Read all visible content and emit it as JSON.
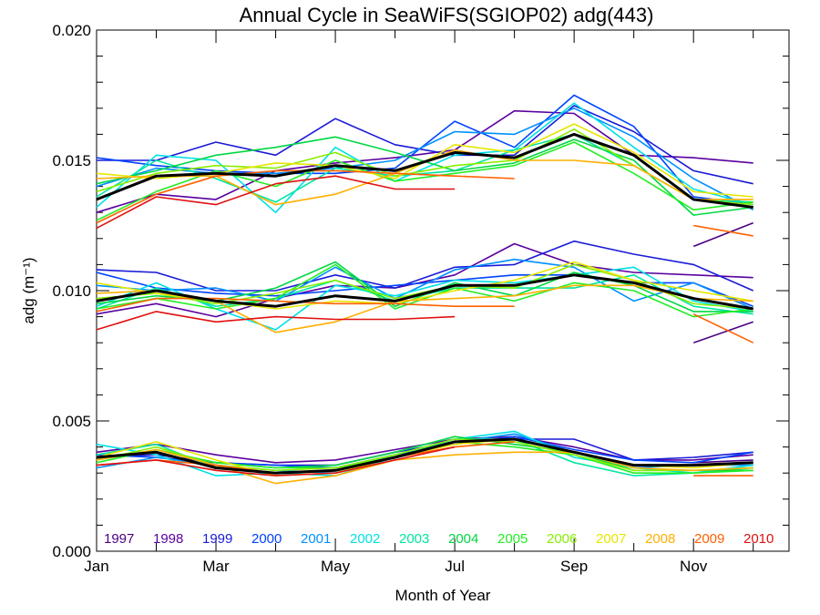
{
  "chart_data": {
    "type": "line",
    "title": "Annual Cycle in SeaWiFS(SGIOP02) adg(443)",
    "xlabel": "Month of Year",
    "ylabel": "adg (m⁻¹)",
    "xlim": [
      1,
      12.6
    ],
    "ylim": [
      0,
      0.02
    ],
    "x": [
      1,
      2,
      3,
      4,
      5,
      6,
      7,
      8,
      9,
      10,
      11,
      12
    ],
    "xticks": [
      {
        "x": 1,
        "label": "Jan"
      },
      {
        "x": 3,
        "label": "Mar"
      },
      {
        "x": 5,
        "label": "May"
      },
      {
        "x": 7,
        "label": "Jul"
      },
      {
        "x": 9,
        "label": "Sep"
      },
      {
        "x": 11,
        "label": "Nov"
      }
    ],
    "yticks": [
      {
        "y": 0,
        "label": "0.000"
      },
      {
        "y": 0.005,
        "label": "0.005"
      },
      {
        "y": 0.01,
        "label": "0.010"
      },
      {
        "y": 0.015,
        "label": "0.015"
      },
      {
        "y": 0.02,
        "label": "0.020"
      }
    ],
    "grid": false,
    "legend_position": "bottom",
    "series": [
      {
        "name": "1997",
        "color": "#4b0082",
        "upper": [
          null,
          null,
          null,
          null,
          null,
          null,
          null,
          null,
          null,
          null,
          0.0117,
          0.0126
        ],
        "middle": [
          null,
          null,
          null,
          null,
          null,
          null,
          null,
          null,
          null,
          null,
          0.008,
          0.0088
        ],
        "lower": [
          null,
          null,
          null,
          null,
          null,
          null,
          null,
          null,
          null,
          null,
          0.0034,
          0.0035
        ]
      },
      {
        "name": "1998",
        "color": "#5a00a0",
        "upper": [
          0.013,
          0.0137,
          0.0135,
          0.0146,
          0.0149,
          0.0151,
          0.0154,
          0.0169,
          0.0168,
          0.0152,
          0.0151,
          0.0149
        ],
        "middle": [
          0.0091,
          0.0095,
          0.009,
          0.0097,
          0.0102,
          0.0101,
          0.0106,
          0.0118,
          0.011,
          0.0107,
          0.0106,
          0.0105
        ],
        "lower": [
          0.0038,
          0.0041,
          0.0037,
          0.0034,
          0.0035,
          0.0039,
          0.0043,
          0.0044,
          0.004,
          0.0035,
          0.0035,
          0.0037
        ]
      },
      {
        "name": "1999",
        "color": "#1a1ad8",
        "upper": [
          0.015,
          0.015,
          0.0157,
          0.0152,
          0.0166,
          0.0156,
          0.0152,
          0.0152,
          0.0171,
          0.0161,
          0.0146,
          0.0141
        ],
        "middle": [
          0.0108,
          0.0107,
          0.01,
          0.01,
          0.0106,
          0.0101,
          0.0109,
          0.011,
          0.0119,
          0.0114,
          0.011,
          0.01
        ],
        "lower": [
          0.0036,
          0.0037,
          0.0034,
          0.0033,
          0.0033,
          0.0038,
          0.0042,
          0.0043,
          0.0043,
          0.0035,
          0.0036,
          0.0038
        ]
      },
      {
        "name": "2000",
        "color": "#0044ff",
        "upper": [
          0.0151,
          0.0148,
          0.0146,
          0.0145,
          0.0145,
          0.0147,
          0.0165,
          0.0155,
          0.0175,
          0.0163,
          0.0136,
          0.0133
        ],
        "middle": [
          0.0107,
          0.0101,
          0.0099,
          0.0098,
          0.01,
          0.0102,
          0.0104,
          0.0106,
          0.0106,
          0.0103,
          0.0103,
          0.0094
        ],
        "lower": [
          0.0037,
          0.0036,
          0.0034,
          0.0033,
          0.0032,
          0.0037,
          0.0041,
          0.0044,
          0.0039,
          0.0035,
          0.0034,
          0.0038
        ]
      },
      {
        "name": "2001",
        "color": "#0090ff",
        "upper": [
          0.014,
          0.0147,
          0.0145,
          0.0145,
          0.0147,
          0.015,
          0.0161,
          0.016,
          0.017,
          0.0159,
          0.0143,
          0.0131
        ],
        "middle": [
          0.0102,
          0.01,
          0.0101,
          0.0096,
          0.0109,
          0.0097,
          0.0108,
          0.0112,
          0.0109,
          0.0096,
          0.0103,
          0.0093
        ],
        "lower": [
          0.0032,
          0.0036,
          0.0033,
          0.0031,
          0.003,
          0.0036,
          0.0042,
          0.0045,
          0.0038,
          0.0032,
          0.0033,
          0.0033
        ]
      },
      {
        "name": "2002",
        "color": "#00e0e6",
        "upper": [
          0.0132,
          0.0152,
          0.015,
          0.013,
          0.0155,
          0.0142,
          0.0152,
          0.0154,
          0.0172,
          0.0155,
          0.0139,
          0.0133
        ],
        "middle": [
          0.0094,
          0.0103,
          0.0093,
          0.0085,
          0.0102,
          0.0098,
          0.0104,
          0.0103,
          0.0106,
          0.0109,
          0.0096,
          0.0092
        ],
        "lower": [
          0.0041,
          0.0037,
          0.0029,
          0.003,
          0.0029,
          0.0036,
          0.0043,
          0.0046,
          0.0036,
          0.0032,
          0.003,
          0.0033
        ]
      },
      {
        "name": "2003",
        "color": "#00e6a0",
        "upper": [
          0.0136,
          0.015,
          0.0143,
          0.0134,
          0.0147,
          0.0144,
          0.0146,
          0.0154,
          0.016,
          0.0148,
          0.0135,
          0.0134
        ],
        "middle": [
          0.0093,
          0.0101,
          0.0094,
          0.0097,
          0.0104,
          0.0096,
          0.0101,
          0.0101,
          0.0101,
          0.0106,
          0.0094,
          0.0091
        ],
        "lower": [
          0.0037,
          0.0041,
          0.0032,
          0.003,
          0.0031,
          0.0037,
          0.0043,
          0.0043,
          0.0034,
          0.0029,
          0.003,
          0.0032
        ]
      },
      {
        "name": "2004",
        "color": "#00d844",
        "upper": [
          0.0141,
          0.0146,
          0.0152,
          0.0155,
          0.0159,
          0.0153,
          0.0146,
          0.0149,
          0.0158,
          0.015,
          0.0129,
          0.0132
        ],
        "middle": [
          0.0095,
          0.0098,
          0.0096,
          0.0101,
          0.0111,
          0.0094,
          0.0103,
          0.0098,
          0.0107,
          0.0102,
          0.0092,
          0.0092
        ],
        "lower": [
          0.0035,
          0.0039,
          0.0034,
          0.0032,
          0.0033,
          0.0038,
          0.0044,
          0.0041,
          0.0038,
          0.0031,
          0.0031,
          0.0031
        ]
      },
      {
        "name": "2005",
        "color": "#22ee22",
        "upper": [
          0.0127,
          0.0138,
          0.0146,
          0.014,
          0.015,
          0.0142,
          0.0145,
          0.0148,
          0.0157,
          0.0145,
          0.0131,
          0.0134
        ],
        "middle": [
          0.0093,
          0.0097,
          0.0093,
          0.0097,
          0.011,
          0.0093,
          0.0101,
          0.0096,
          0.0103,
          0.01,
          0.009,
          0.0093
        ],
        "lower": [
          0.0034,
          0.0039,
          0.0034,
          0.0032,
          0.0032,
          0.0036,
          0.0042,
          0.004,
          0.0037,
          0.003,
          0.003,
          0.0031
        ]
      },
      {
        "name": "2006",
        "color": "#88ee00",
        "upper": [
          0.0138,
          0.0145,
          0.0148,
          0.0147,
          0.0153,
          0.0144,
          0.0148,
          0.015,
          0.0162,
          0.0148,
          0.0135,
          0.0133
        ],
        "middle": [
          0.0097,
          0.0099,
          0.0095,
          0.0099,
          0.0104,
          0.0097,
          0.0102,
          0.0101,
          0.011,
          0.0104,
          0.0095,
          0.0093
        ],
        "lower": [
          0.0035,
          0.004,
          0.0033,
          0.0031,
          0.0032,
          0.0037,
          0.0043,
          0.0042,
          0.0037,
          0.0031,
          0.0031,
          0.0032
        ]
      },
      {
        "name": "2007",
        "color": "#e6e600",
        "upper": [
          0.0145,
          0.0143,
          0.0145,
          0.0149,
          0.0148,
          0.0143,
          0.0156,
          0.0153,
          0.0164,
          0.0153,
          0.0138,
          0.0136
        ],
        "middle": [
          0.0103,
          0.0099,
          0.0096,
          0.0093,
          0.0096,
          0.0095,
          0.01,
          0.0104,
          0.0111,
          0.0104,
          0.01,
          0.0096
        ],
        "lower": [
          0.0036,
          0.0042,
          0.0035,
          0.0029,
          0.003,
          0.0036,
          0.0041,
          0.0043,
          0.0038,
          0.0033,
          0.0032,
          0.0034
        ]
      },
      {
        "name": "2008",
        "color": "#ffb000",
        "upper": [
          0.0143,
          0.0144,
          0.0144,
          0.0133,
          0.0137,
          0.0145,
          0.0154,
          0.015,
          0.015,
          0.0148,
          0.0135,
          0.0135
        ],
        "middle": [
          0.0099,
          0.01,
          0.0096,
          0.0084,
          0.0088,
          0.0096,
          0.0097,
          0.0098,
          0.0102,
          0.0102,
          0.0097,
          0.0096
        ],
        "lower": [
          0.0035,
          0.0039,
          0.0033,
          0.0026,
          0.0029,
          0.0035,
          0.0037,
          0.0038,
          0.0038,
          0.0032,
          0.0031,
          0.0032
        ]
      },
      {
        "name": "2009",
        "color": "#ff6000",
        "upper": [
          0.0126,
          0.0137,
          0.0144,
          0.0146,
          0.0146,
          0.0145,
          0.0144,
          0.0143,
          null,
          null,
          0.0125,
          0.0121
        ],
        "middle": [
          0.0092,
          0.0097,
          0.0097,
          0.0096,
          0.0095,
          0.0095,
          0.0094,
          0.0094,
          null,
          null,
          0.0091,
          0.008
        ],
        "lower": [
          0.0033,
          0.0035,
          0.0033,
          0.003,
          0.0031,
          0.0036,
          0.004,
          0.0042,
          null,
          null,
          0.0029,
          0.0029
        ]
      },
      {
        "name": "2010",
        "color": "#e01010",
        "upper": [
          0.0124,
          0.0136,
          0.0133,
          0.0141,
          0.0144,
          0.0139,
          0.0139,
          null,
          null,
          null,
          null,
          null
        ],
        "middle": [
          0.0085,
          0.0092,
          0.0088,
          0.009,
          0.0089,
          0.0089,
          0.009,
          null,
          null,
          null,
          null,
          null
        ],
        "lower": [
          0.0033,
          0.0035,
          0.0031,
          0.0029,
          0.003,
          0.0035,
          0.004,
          null,
          null,
          null,
          null,
          null
        ]
      },
      {
        "role": "mean",
        "color": "#000000",
        "upper": [
          0.0135,
          0.0144,
          0.0145,
          0.0144,
          0.0148,
          0.0146,
          0.0153,
          0.0151,
          0.016,
          0.0152,
          0.0135,
          0.0132
        ],
        "middle": [
          0.0096,
          0.01,
          0.0096,
          0.0094,
          0.0098,
          0.0096,
          0.0102,
          0.0102,
          0.0106,
          0.0103,
          0.0097,
          0.0093
        ],
        "lower": [
          0.0036,
          0.0038,
          0.0032,
          0.003,
          0.0031,
          0.0036,
          0.0042,
          0.0043,
          0.0038,
          0.0033,
          0.0033,
          0.0034
        ]
      }
    ]
  }
}
